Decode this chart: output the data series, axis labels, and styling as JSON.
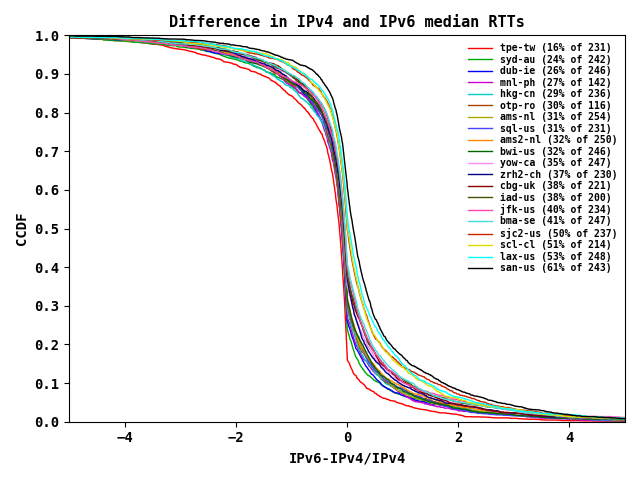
{
  "title": "Difference in IPv4 and IPv6 median RTTs",
  "xlabel": "IPv6-IPv4/IPv4",
  "ylabel": "CCDF",
  "xlim": [
    -5,
    5
  ],
  "ylim": [
    0,
    1
  ],
  "xticks": [
    -4,
    -2,
    0,
    2,
    4
  ],
  "yticks": [
    0,
    0.1,
    0.2,
    0.3,
    0.4,
    0.5,
    0.6,
    0.7,
    0.8,
    0.9,
    1
  ],
  "series": [
    {
      "label": "tpe-tw (16% of 231)",
      "color": "#ff0000",
      "pct": 0.16,
      "n": 231,
      "seed": 1
    },
    {
      "label": "syd-au (24% of 242)",
      "color": "#00aa00",
      "pct": 0.24,
      "n": 242,
      "seed": 2
    },
    {
      "label": "dub-ie (26% of 246)",
      "color": "#0000ff",
      "pct": 0.26,
      "n": 246,
      "seed": 3
    },
    {
      "label": "mnl-ph (27% of 142)",
      "color": "#cc00cc",
      "pct": 0.27,
      "n": 142,
      "seed": 4
    },
    {
      "label": "hkg-cn (29% of 236)",
      "color": "#00cccc",
      "pct": 0.29,
      "n": 236,
      "seed": 5
    },
    {
      "label": "otp-ro (30% of 116)",
      "color": "#aa4400",
      "pct": 0.3,
      "n": 116,
      "seed": 6
    },
    {
      "label": "ams-nl (31% of 254)",
      "color": "#aaaa00",
      "pct": 0.31,
      "n": 254,
      "seed": 7
    },
    {
      "label": "sql-us (31% of 231)",
      "color": "#4444ff",
      "pct": 0.31,
      "n": 231,
      "seed": 8
    },
    {
      "label": "ams2-nl (32% of 250)",
      "color": "#ff8800",
      "pct": 0.32,
      "n": 250,
      "seed": 9
    },
    {
      "label": "bwi-us (32% of 246)",
      "color": "#006600",
      "pct": 0.32,
      "n": 246,
      "seed": 10
    },
    {
      "label": "yow-ca (35% of 247)",
      "color": "#ff88ff",
      "pct": 0.35,
      "n": 247,
      "seed": 11
    },
    {
      "label": "zrh2-ch (37% of 230)",
      "color": "#000088",
      "pct": 0.37,
      "n": 230,
      "seed": 12
    },
    {
      "label": "cbg-uk (38% of 221)",
      "color": "#880000",
      "pct": 0.38,
      "n": 221,
      "seed": 13
    },
    {
      "label": "iad-us (38% of 200)",
      "color": "#445500",
      "pct": 0.38,
      "n": 200,
      "seed": 14
    },
    {
      "label": "jfk-us (40% of 234)",
      "color": "#ff44aa",
      "pct": 0.4,
      "n": 234,
      "seed": 15
    },
    {
      "label": "bma-se (41% of 247)",
      "color": "#44dddd",
      "pct": 0.41,
      "n": 247,
      "seed": 16
    },
    {
      "label": "sjc2-us (50% of 237)",
      "color": "#cc2200",
      "pct": 0.5,
      "n": 237,
      "seed": 17
    },
    {
      "label": "scl-cl (51% of 214)",
      "color": "#dddd00",
      "pct": 0.51,
      "n": 214,
      "seed": 18
    },
    {
      "label": "lax-us (53% of 248)",
      "color": "#00ffff",
      "pct": 0.53,
      "n": 248,
      "seed": 19
    },
    {
      "label": "san-us (61% of 243)",
      "color": "#000000",
      "pct": 0.61,
      "n": 243,
      "seed": 20
    }
  ],
  "figsize": [
    6.4,
    4.8
  ],
  "dpi": 100,
  "title_fontsize": 11,
  "label_fontsize": 10,
  "legend_fontsize": 7,
  "tick_fontsize": 10,
  "linewidth": 1.0
}
